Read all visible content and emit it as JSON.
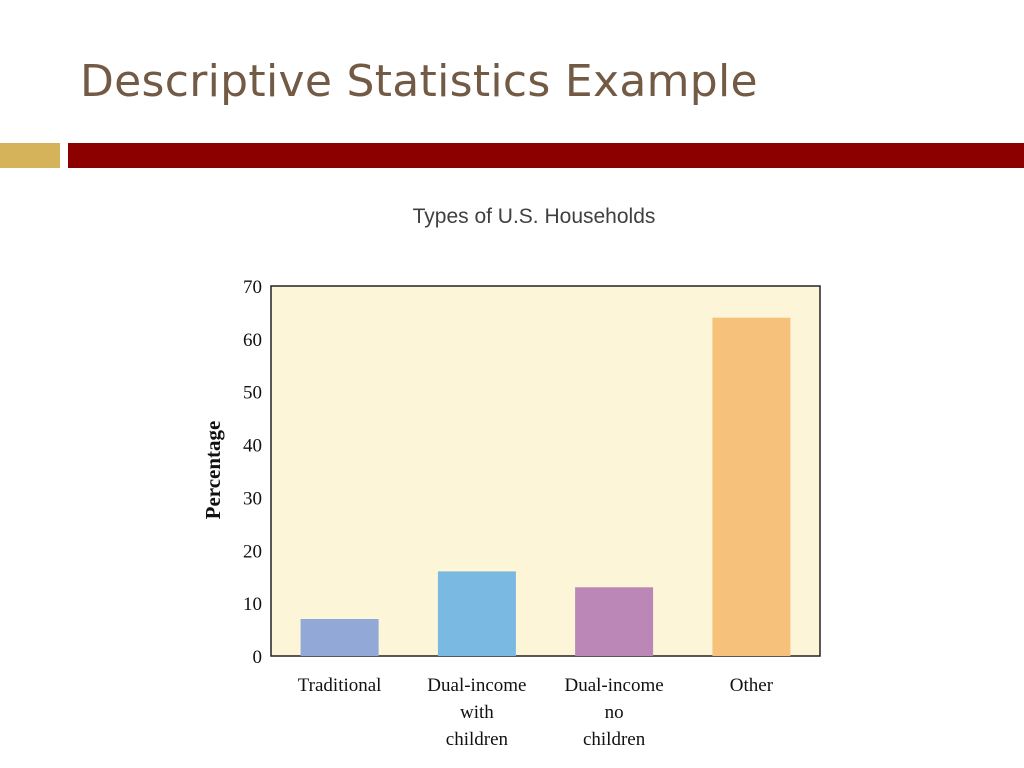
{
  "slide": {
    "title": "Descriptive Statistics Example"
  },
  "colors": {
    "title_text": "#735a45",
    "accent_gold": "#d4b35b",
    "accent_red": "#8c0000",
    "plot_background": "#fdf5d8",
    "axis": "#222222",
    "tick_text": "#111111"
  },
  "chart_data": {
    "type": "bar",
    "title": "Types of U.S. Households",
    "xlabel": "",
    "ylabel": "Percentage",
    "ylim": [
      0,
      70
    ],
    "yticks": [
      0,
      10,
      20,
      30,
      40,
      50,
      60,
      70
    ],
    "grid": false,
    "legend": "none",
    "categories": [
      [
        "Traditional"
      ],
      [
        "Dual-income",
        "with",
        "children"
      ],
      [
        "Dual-income",
        "no",
        "children"
      ],
      [
        "Other"
      ]
    ],
    "values": [
      7,
      16,
      13,
      64
    ],
    "bar_colors": [
      "#92a8d6",
      "#7ab9e2",
      "#bb87b6",
      "#f5c17b"
    ]
  }
}
